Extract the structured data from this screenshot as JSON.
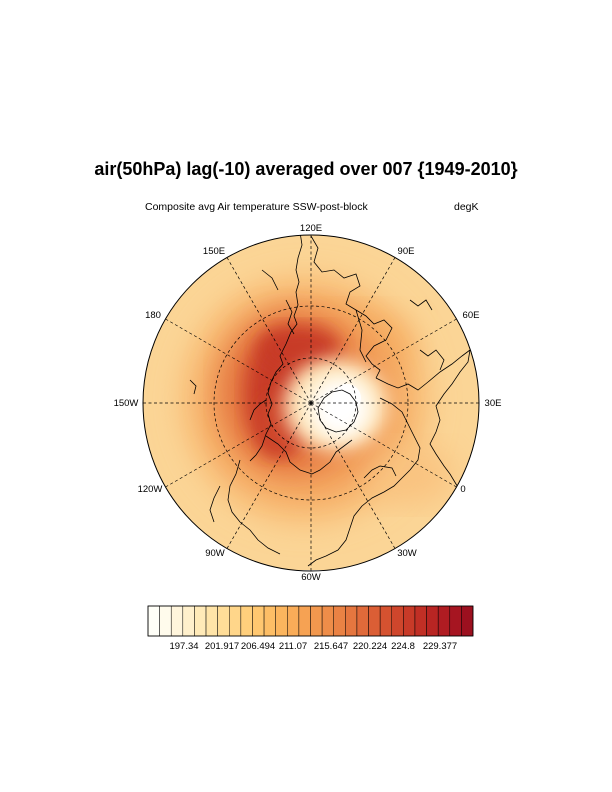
{
  "title": "air(50hPa) lag(-10) averaged over 007 {1949-2010}",
  "subtitle_left": "Composite avg Air temperature SSW-post-block",
  "subtitle_right": "degK",
  "longitude_labels": [
    "120E",
    "90E",
    "60E",
    "30E",
    "0",
    "30W",
    "60W",
    "90W",
    "120W",
    "150W",
    "180",
    "150E"
  ],
  "colorbar": {
    "tick_labels": [
      "197.34",
      "201.917",
      "206.494",
      "211.07",
      "215.647",
      "220.224",
      "224.8",
      "229.377"
    ],
    "colors": [
      "#fffff8",
      "#fffbec",
      "#fff5dc",
      "#fff0cc",
      "#ffeab8",
      "#ffe4a8",
      "#ffdd98",
      "#ffd68a",
      "#ffcf7c",
      "#ffc770",
      "#fdbe66",
      "#fbb55e",
      "#f9ac58",
      "#f6a253",
      "#f2984e",
      "#ee8d49",
      "#ea8244",
      "#e5763f",
      "#e06a3a",
      "#db5e35",
      "#d55230",
      "#cf462c",
      "#c83a28",
      "#c12f25",
      "#b92523",
      "#b01c22",
      "#a61521",
      "#9c101f"
    ]
  },
  "map": {
    "projection": "north polar stereographic",
    "variable": "air temperature",
    "level": "50hPa",
    "units": "degK",
    "min_lat": 0
  }
}
